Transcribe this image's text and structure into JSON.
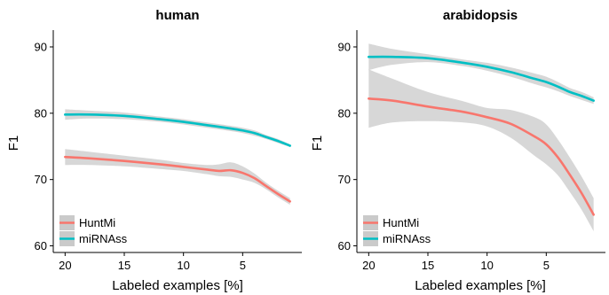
{
  "chart_data": [
    {
      "type": "line",
      "title": "human",
      "xlabel": "Labeled examples [%]",
      "ylabel": "F1",
      "xlim": [
        21,
        0
      ],
      "ylim": [
        59,
        92
      ],
      "x_ticks": [
        20,
        15,
        10,
        5
      ],
      "y_ticks": [
        60,
        70,
        80,
        90
      ],
      "x_reversed": true,
      "legend": "bottom-left",
      "grid": false,
      "series": [
        {
          "name": "HuntMi",
          "color": "#F8766D",
          "x": [
            20,
            18,
            15,
            12,
            10,
            8,
            7,
            6,
            5,
            4,
            3,
            2,
            1
          ],
          "y": [
            73.4,
            73.2,
            72.8,
            72.3,
            71.9,
            71.5,
            71.3,
            71.4,
            71.0,
            70.2,
            69.0,
            67.8,
            66.7
          ],
          "lower": [
            72.2,
            72.2,
            72.0,
            71.6,
            71.3,
            70.8,
            70.5,
            70.4,
            70.0,
            69.5,
            68.5,
            67.3,
            66.2
          ],
          "upper": [
            74.6,
            74.2,
            73.6,
            73.0,
            72.5,
            72.2,
            72.3,
            72.6,
            72.0,
            70.9,
            69.5,
            68.3,
            67.2
          ]
        },
        {
          "name": "miRNAss",
          "color": "#00BFC4",
          "x": [
            20,
            18,
            15,
            12,
            10,
            8,
            6,
            5,
            4,
            3,
            2,
            1
          ],
          "y": [
            79.8,
            79.8,
            79.6,
            79.1,
            78.7,
            78.2,
            77.7,
            77.4,
            77.0,
            76.4,
            75.8,
            75.1
          ],
          "lower": [
            79.0,
            79.2,
            79.1,
            78.7,
            78.3,
            77.8,
            77.3,
            77.0,
            76.6,
            76.1,
            75.5,
            74.9
          ],
          "upper": [
            80.6,
            80.4,
            80.1,
            79.5,
            79.1,
            78.6,
            78.1,
            77.8,
            77.4,
            76.7,
            76.1,
            75.3
          ]
        }
      ]
    },
    {
      "type": "line",
      "title": "arabidopsis",
      "xlabel": "Labeled examples [%]",
      "ylabel": "F1",
      "xlim": [
        21,
        0
      ],
      "ylim": [
        59,
        92
      ],
      "x_ticks": [
        20,
        15,
        10,
        5
      ],
      "y_ticks": [
        60,
        70,
        80,
        90
      ],
      "x_reversed": true,
      "legend": "bottom-left",
      "grid": false,
      "series": [
        {
          "name": "HuntMi",
          "color": "#F8766D",
          "x": [
            20,
            18,
            15,
            12,
            10,
            8,
            6,
            5,
            4,
            3,
            2,
            1
          ],
          "y": [
            82.2,
            81.9,
            81.0,
            80.2,
            79.4,
            78.4,
            76.5,
            75.3,
            73.3,
            70.7,
            67.9,
            64.7
          ],
          "lower": [
            77.8,
            78.6,
            78.8,
            78.6,
            78.0,
            76.3,
            73.6,
            72.3,
            70.6,
            68.1,
            65.4,
            62.2
          ],
          "upper": [
            86.6,
            85.2,
            83.2,
            81.8,
            80.8,
            80.5,
            79.4,
            78.3,
            76.0,
            73.3,
            70.4,
            67.2
          ]
        },
        {
          "name": "miRNAss",
          "color": "#00BFC4",
          "x": [
            20,
            18,
            15,
            12,
            10,
            8,
            6,
            5,
            4,
            3,
            2,
            1
          ],
          "y": [
            88.5,
            88.5,
            88.3,
            87.6,
            87.0,
            86.2,
            85.2,
            84.7,
            84.0,
            83.2,
            82.6,
            81.9
          ],
          "lower": [
            86.5,
            87.3,
            87.7,
            87.1,
            86.4,
            85.5,
            84.4,
            83.9,
            83.3,
            82.6,
            82.0,
            81.4
          ],
          "upper": [
            90.5,
            89.7,
            88.9,
            88.1,
            87.6,
            86.9,
            86.0,
            85.5,
            84.7,
            83.8,
            83.2,
            82.4
          ]
        }
      ]
    }
  ]
}
